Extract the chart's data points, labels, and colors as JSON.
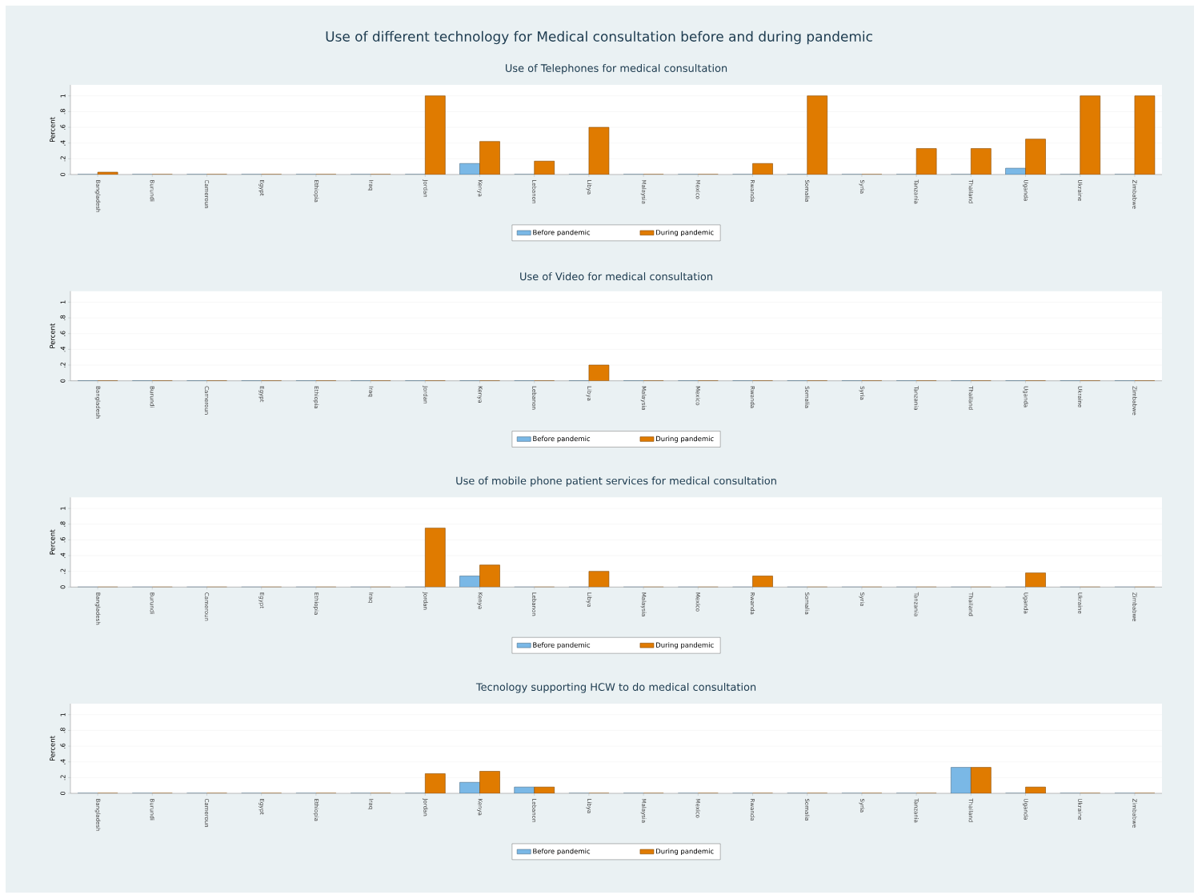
{
  "chart_data": [
    {
      "type": "bar",
      "title": "Use of different technology for Medical consultation before and during pandemic",
      "subtitle": "Use of Telephones for medical consultation",
      "ylabel": "Percent",
      "categories": [
        "Bangladesh",
        "Burundi",
        "Cameroun",
        "Egypt",
        "Ethiopia",
        "Iraq",
        "Jordan",
        "Kenya",
        "Lebanon",
        "Libya",
        "Malaysia",
        "Mexico",
        "Rwanda",
        "Somalia",
        "Syria",
        "Tanzania",
        "Thailand",
        "Uganda",
        "Ukraine",
        "Zimbabwe"
      ],
      "series": [
        {
          "name": "Before pandemic",
          "color": "#7ab8e6",
          "values": [
            0,
            0,
            0,
            0,
            0,
            0,
            0,
            0.14,
            0,
            0,
            0,
            0,
            0,
            0,
            0,
            0,
            0,
            0.08,
            0,
            0
          ]
        },
        {
          "name": "During pandemic",
          "color": "#e07b00",
          "values": [
            0.03,
            0,
            0,
            0,
            0,
            0,
            1,
            0.42,
            0.17,
            0.6,
            0,
            0,
            0.14,
            1,
            0,
            0.33,
            0.33,
            0.45,
            1,
            1
          ]
        }
      ],
      "ylim": [
        0,
        1.14
      ],
      "yticks": [
        0,
        {
          "value": 0.2,
          "label": ".2"
        },
        {
          "value": 0.4,
          "label": ".4"
        },
        {
          "value": 0.6,
          "label": ".6"
        },
        {
          "value": 0.8,
          "label": ".8"
        },
        1
      ],
      "grid": "y",
      "legend": "bottom"
    },
    {
      "type": "bar",
      "title": "Use of Video for medical consultation",
      "ylabel": "Percent",
      "categories": [
        "Bangladesh",
        "Burundi",
        "Cameroun",
        "Egypt",
        "Ethiopia",
        "Iraq",
        "Jordan",
        "Kenya",
        "Lebanon",
        "Libya",
        "Malaysia",
        "Mexico",
        "Rwanda",
        "Somalia",
        "Syria",
        "Tanzania",
        "Thailand",
        "Uganda",
        "Ukraine",
        "Zimbabwe"
      ],
      "series": [
        {
          "name": "Before pandemic",
          "color": "#7ab8e6",
          "values": [
            0,
            0,
            0,
            0,
            0,
            0,
            0,
            0,
            0,
            0,
            0,
            0,
            0,
            0,
            0,
            0,
            0,
            0,
            0,
            0
          ]
        },
        {
          "name": "During pandemic",
          "color": "#e07b00",
          "values": [
            0,
            0,
            0,
            0,
            0,
            0,
            0,
            0,
            0,
            0.2,
            0,
            0,
            0,
            0,
            0,
            0,
            0,
            0,
            0,
            0
          ]
        }
      ],
      "ylim": [
        0,
        1.14
      ],
      "yticks": [
        0,
        {
          "value": 0.2,
          "label": ".2"
        },
        {
          "value": 0.4,
          "label": ".4"
        },
        {
          "value": 0.6,
          "label": ".6"
        },
        {
          "value": 0.8,
          "label": ".8"
        },
        1
      ],
      "grid": "y",
      "legend": "bottom"
    },
    {
      "type": "bar",
      "title": "Use of mobile phone patient services for medical consultation",
      "ylabel": "Percent",
      "categories": [
        "Bangladesh",
        "Burundi",
        "Cameroun",
        "Egypt",
        "Ethiopia",
        "Iraq",
        "Jordan",
        "Kenya",
        "Lebanon",
        "Libya",
        "Malaysia",
        "Mexico",
        "Rwanda",
        "Somalia",
        "Syria",
        "Tanzania",
        "Thailand",
        "Uganda",
        "Ukraine",
        "Zimbabwe"
      ],
      "series": [
        {
          "name": "Before pandemic",
          "color": "#7ab8e6",
          "values": [
            0,
            0,
            0,
            0,
            0,
            0,
            0,
            0.14,
            0,
            0,
            0,
            0,
            0,
            0,
            0,
            0,
            0,
            0,
            0,
            0
          ]
        },
        {
          "name": "During pandemic",
          "color": "#e07b00",
          "values": [
            0,
            0,
            0,
            0,
            0,
            0,
            0.75,
            0.28,
            0,
            0.2,
            0,
            0,
            0.14,
            0,
            0,
            0,
            0,
            0.18,
            0,
            0
          ]
        }
      ],
      "ylim": [
        0,
        1.14
      ],
      "yticks": [
        0,
        {
          "value": 0.2,
          "label": ".2"
        },
        {
          "value": 0.4,
          "label": ".4"
        },
        {
          "value": 0.6,
          "label": ".6"
        },
        {
          "value": 0.8,
          "label": ".8"
        },
        1
      ],
      "grid": "y",
      "legend": "bottom"
    },
    {
      "type": "bar",
      "title": "Tecnology supporting HCW to do medical consultation",
      "ylabel": "Percent",
      "categories": [
        "Bangladesh",
        "Burundi",
        "Cameroun",
        "Egypt",
        "Ethiopia",
        "Iraq",
        "Jordan",
        "Kenya",
        "Lebanon",
        "Libya",
        "Malaysia",
        "Mexico",
        "Rwanda",
        "Somalia",
        "Syria",
        "Tanzania",
        "Thailand",
        "Uganda",
        "Ukraine",
        "Zimbabwe"
      ],
      "series": [
        {
          "name": "Before pandemic",
          "color": "#7ab8e6",
          "values": [
            0,
            0,
            0,
            0,
            0,
            0,
            0,
            0.14,
            0.08,
            0,
            0,
            0,
            0,
            0,
            0,
            0,
            0.33,
            0,
            0,
            0
          ]
        },
        {
          "name": "During pandemic",
          "color": "#e07b00",
          "values": [
            0,
            0,
            0,
            0,
            0,
            0,
            0.25,
            0.28,
            0.08,
            0,
            0,
            0,
            0,
            0,
            0,
            0,
            0.33,
            0.08,
            0,
            0
          ]
        }
      ],
      "ylim": [
        0,
        1.14
      ],
      "yticks": [
        0,
        {
          "value": 0.2,
          "label": ".2"
        },
        {
          "value": 0.4,
          "label": ".4"
        },
        {
          "value": 0.6,
          "label": ".6"
        },
        {
          "value": 0.8,
          "label": ".8"
        },
        1
      ],
      "grid": "y",
      "legend": "bottom"
    }
  ]
}
